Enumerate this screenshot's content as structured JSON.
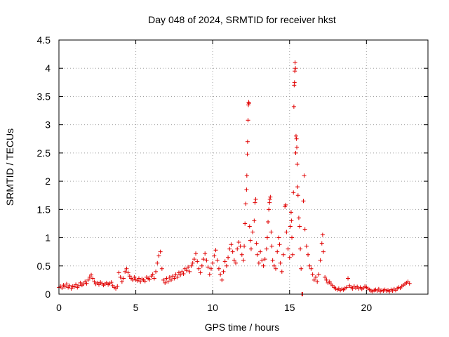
{
  "chart_data": {
    "type": "scatter",
    "title": "Day 048 of 2024, SRMTID for receiver hkst",
    "xlabel": "GPS time / hours",
    "ylabel": "SRMTID / TECUs",
    "xlim": [
      0,
      24
    ],
    "ylim": [
      0,
      4.5
    ],
    "x_ticks": [
      0,
      5,
      10,
      15,
      20
    ],
    "x_tick_labels": [
      "0",
      "5",
      "10",
      "15",
      "20"
    ],
    "y_ticks": [
      0,
      0.5,
      1,
      1.5,
      2,
      2.5,
      3,
      3.5,
      4,
      4.5
    ],
    "y_tick_labels": [
      "0",
      "0.5",
      "1",
      "1.5",
      "2",
      "2.5",
      "3",
      "3.5",
      "4",
      "4.5"
    ],
    "grid": true,
    "marker": "plus",
    "marker_color": "#e00000",
    "series": [
      {
        "name": "SRMTID",
        "points": [
          [
            0.0,
            0.12
          ],
          [
            0.1,
            0.14
          ],
          [
            0.2,
            0.11
          ],
          [
            0.3,
            0.16
          ],
          [
            0.4,
            0.13
          ],
          [
            0.5,
            0.18
          ],
          [
            0.6,
            0.12
          ],
          [
            0.7,
            0.15
          ],
          [
            0.8,
            0.1
          ],
          [
            0.9,
            0.14
          ],
          [
            1.0,
            0.13
          ],
          [
            1.1,
            0.17
          ],
          [
            1.2,
            0.12
          ],
          [
            1.3,
            0.15
          ],
          [
            1.4,
            0.2
          ],
          [
            1.5,
            0.16
          ],
          [
            1.6,
            0.18
          ],
          [
            1.7,
            0.22
          ],
          [
            1.8,
            0.19
          ],
          [
            1.9,
            0.25
          ],
          [
            2.0,
            0.3
          ],
          [
            2.1,
            0.34
          ],
          [
            2.2,
            0.28
          ],
          [
            2.3,
            0.22
          ],
          [
            2.4,
            0.18
          ],
          [
            2.5,
            0.2
          ],
          [
            2.6,
            0.17
          ],
          [
            2.7,
            0.21
          ],
          [
            2.8,
            0.19
          ],
          [
            2.9,
            0.16
          ],
          [
            3.0,
            0.18
          ],
          [
            3.1,
            0.2
          ],
          [
            3.2,
            0.17
          ],
          [
            3.3,
            0.19
          ],
          [
            3.4,
            0.21
          ],
          [
            3.5,
            0.15
          ],
          [
            3.6,
            0.12
          ],
          [
            3.7,
            0.1
          ],
          [
            3.8,
            0.14
          ],
          [
            3.9,
            0.38
          ],
          [
            4.0,
            0.3
          ],
          [
            4.1,
            0.22
          ],
          [
            4.2,
            0.28
          ],
          [
            4.3,
            0.4
          ],
          [
            4.4,
            0.45
          ],
          [
            4.5,
            0.38
          ],
          [
            4.6,
            0.32
          ],
          [
            4.7,
            0.28
          ],
          [
            4.8,
            0.25
          ],
          [
            4.9,
            0.3
          ],
          [
            5.0,
            0.26
          ],
          [
            5.1,
            0.24
          ],
          [
            5.2,
            0.28
          ],
          [
            5.3,
            0.22
          ],
          [
            5.4,
            0.27
          ],
          [
            5.5,
            0.25
          ],
          [
            5.6,
            0.23
          ],
          [
            5.7,
            0.3
          ],
          [
            5.8,
            0.28
          ],
          [
            5.9,
            0.26
          ],
          [
            6.0,
            0.32
          ],
          [
            6.1,
            0.35
          ],
          [
            6.2,
            0.28
          ],
          [
            6.3,
            0.4
          ],
          [
            6.4,
            0.55
          ],
          [
            6.5,
            0.68
          ],
          [
            6.6,
            0.75
          ],
          [
            6.7,
            0.45
          ],
          [
            6.8,
            0.25
          ],
          [
            6.9,
            0.2
          ],
          [
            7.0,
            0.28
          ],
          [
            7.1,
            0.22
          ],
          [
            7.2,
            0.3
          ],
          [
            7.3,
            0.25
          ],
          [
            7.4,
            0.32
          ],
          [
            7.5,
            0.28
          ],
          [
            7.6,
            0.35
          ],
          [
            7.7,
            0.3
          ],
          [
            7.8,
            0.38
          ],
          [
            7.9,
            0.34
          ],
          [
            8.0,
            0.4
          ],
          [
            8.1,
            0.36
          ],
          [
            8.2,
            0.45
          ],
          [
            8.3,
            0.42
          ],
          [
            8.4,
            0.48
          ],
          [
            8.5,
            0.4
          ],
          [
            8.6,
            0.5
          ],
          [
            8.7,
            0.55
          ],
          [
            8.8,
            0.62
          ],
          [
            8.9,
            0.72
          ],
          [
            9.0,
            0.58
          ],
          [
            9.1,
            0.45
          ],
          [
            9.2,
            0.38
          ],
          [
            9.3,
            0.5
          ],
          [
            9.4,
            0.62
          ],
          [
            9.5,
            0.72
          ],
          [
            9.6,
            0.6
          ],
          [
            9.7,
            0.48
          ],
          [
            9.8,
            0.35
          ],
          [
            9.9,
            0.45
          ],
          [
            10.0,
            0.55
          ],
          [
            10.1,
            0.68
          ],
          [
            10.2,
            0.78
          ],
          [
            10.3,
            0.6
          ],
          [
            10.4,
            0.45
          ],
          [
            10.5,
            0.35
          ],
          [
            10.6,
            0.25
          ],
          [
            10.7,
            0.4
          ],
          [
            10.8,
            0.58
          ],
          [
            10.9,
            0.5
          ],
          [
            11.0,
            0.65
          ],
          [
            11.1,
            0.8
          ],
          [
            11.2,
            0.88
          ],
          [
            11.3,
            0.75
          ],
          [
            11.4,
            0.6
          ],
          [
            11.5,
            0.55
          ],
          [
            11.6,
            0.8
          ],
          [
            11.7,
            0.92
          ],
          [
            11.8,
            0.85
          ],
          [
            11.9,
            0.7
          ],
          [
            12.0,
            0.6
          ],
          [
            12.05,
            0.85
          ],
          [
            12.1,
            1.25
          ],
          [
            12.15,
            1.6
          ],
          [
            12.2,
            1.85
          ],
          [
            12.22,
            2.1
          ],
          [
            12.25,
            2.48
          ],
          [
            12.27,
            2.7
          ],
          [
            12.3,
            3.08
          ],
          [
            12.32,
            3.35
          ],
          [
            12.34,
            3.4
          ],
          [
            12.36,
            3.38
          ],
          [
            12.4,
            1.2
          ],
          [
            12.45,
            0.95
          ],
          [
            12.5,
            0.8
          ],
          [
            12.6,
            1.1
          ],
          [
            12.7,
            1.3
          ],
          [
            12.75,
            1.62
          ],
          [
            12.8,
            1.68
          ],
          [
            12.85,
            0.9
          ],
          [
            12.9,
            0.7
          ],
          [
            13.0,
            0.55
          ],
          [
            13.1,
            0.75
          ],
          [
            13.2,
            0.6
          ],
          [
            13.3,
            0.5
          ],
          [
            13.4,
            0.62
          ],
          [
            13.5,
            0.8
          ],
          [
            13.55,
            1.0
          ],
          [
            13.6,
            1.28
          ],
          [
            13.65,
            1.5
          ],
          [
            13.7,
            1.62
          ],
          [
            13.72,
            1.68
          ],
          [
            13.75,
            1.72
          ],
          [
            13.8,
            1.1
          ],
          [
            13.85,
            0.85
          ],
          [
            13.9,
            0.6
          ],
          [
            14.0,
            0.5
          ],
          [
            14.1,
            0.45
          ],
          [
            14.2,
            0.75
          ],
          [
            14.3,
            1.0
          ],
          [
            14.35,
            0.88
          ],
          [
            14.4,
            0.55
          ],
          [
            14.5,
            0.4
          ],
          [
            14.6,
            0.7
          ],
          [
            14.7,
            1.55
          ],
          [
            14.75,
            1.58
          ],
          [
            14.8,
            1.1
          ],
          [
            14.9,
            0.8
          ],
          [
            15.0,
            0.65
          ],
          [
            15.05,
            1.2
          ],
          [
            15.1,
            1.45
          ],
          [
            15.12,
            1.3
          ],
          [
            15.15,
            1.0
          ],
          [
            15.2,
            0.7
          ],
          [
            15.25,
            1.8
          ],
          [
            15.28,
            3.32
          ],
          [
            15.3,
            3.7
          ],
          [
            15.32,
            3.75
          ],
          [
            15.34,
            3.95
          ],
          [
            15.36,
            4.1
          ],
          [
            15.38,
            4.0
          ],
          [
            15.4,
            2.5
          ],
          [
            15.42,
            2.8
          ],
          [
            15.45,
            2.75
          ],
          [
            15.47,
            2.6
          ],
          [
            15.5,
            2.3
          ],
          [
            15.52,
            1.9
          ],
          [
            15.55,
            1.75
          ],
          [
            15.6,
            1.35
          ],
          [
            15.65,
            1.2
          ],
          [
            15.7,
            0.8
          ],
          [
            15.75,
            0.45
          ],
          [
            15.8,
            0.0
          ],
          [
            15.85,
            0.0
          ],
          [
            15.9,
            1.65
          ],
          [
            15.95,
            2.1
          ],
          [
            16.0,
            1.15
          ],
          [
            16.1,
            0.85
          ],
          [
            16.2,
            0.7
          ],
          [
            16.3,
            0.5
          ],
          [
            16.4,
            0.45
          ],
          [
            16.5,
            0.35
          ],
          [
            16.6,
            0.25
          ],
          [
            16.7,
            0.3
          ],
          [
            16.8,
            0.22
          ],
          [
            16.9,
            0.35
          ],
          [
            17.0,
            0.6
          ],
          [
            17.1,
            0.9
          ],
          [
            17.15,
            1.05
          ],
          [
            17.2,
            0.75
          ],
          [
            17.3,
            0.3
          ],
          [
            17.4,
            0.25
          ],
          [
            17.5,
            0.2
          ],
          [
            17.6,
            0.22
          ],
          [
            17.7,
            0.18
          ],
          [
            17.8,
            0.15
          ],
          [
            17.9,
            0.12
          ],
          [
            18.0,
            0.1
          ],
          [
            18.1,
            0.08
          ],
          [
            18.2,
            0.1
          ],
          [
            18.3,
            0.07
          ],
          [
            18.4,
            0.09
          ],
          [
            18.5,
            0.08
          ],
          [
            18.6,
            0.1
          ],
          [
            18.7,
            0.12
          ],
          [
            18.8,
            0.28
          ],
          [
            18.9,
            0.15
          ],
          [
            19.0,
            0.12
          ],
          [
            19.1,
            0.1
          ],
          [
            19.2,
            0.14
          ],
          [
            19.3,
            0.11
          ],
          [
            19.4,
            0.13
          ],
          [
            19.5,
            0.1
          ],
          [
            19.6,
            0.12
          ],
          [
            19.7,
            0.09
          ],
          [
            19.8,
            0.11
          ],
          [
            19.9,
            0.14
          ],
          [
            20.0,
            0.12
          ],
          [
            20.1,
            0.1
          ],
          [
            20.2,
            0.08
          ],
          [
            20.3,
            0.06
          ],
          [
            20.4,
            0.05
          ],
          [
            20.5,
            0.07
          ],
          [
            20.6,
            0.08
          ],
          [
            20.7,
            0.06
          ],
          [
            20.8,
            0.09
          ],
          [
            20.9,
            0.05
          ],
          [
            21.0,
            0.07
          ],
          [
            21.1,
            0.06
          ],
          [
            21.2,
            0.08
          ],
          [
            21.3,
            0.06
          ],
          [
            21.4,
            0.07
          ],
          [
            21.5,
            0.05
          ],
          [
            21.6,
            0.08
          ],
          [
            21.7,
            0.06
          ],
          [
            21.8,
            0.09
          ],
          [
            21.9,
            0.07
          ],
          [
            22.0,
            0.1
          ],
          [
            22.1,
            0.12
          ],
          [
            22.2,
            0.11
          ],
          [
            22.3,
            0.14
          ],
          [
            22.4,
            0.16
          ],
          [
            22.5,
            0.18
          ],
          [
            22.6,
            0.2
          ],
          [
            22.7,
            0.22
          ],
          [
            22.8,
            0.19
          ]
        ]
      }
    ]
  }
}
